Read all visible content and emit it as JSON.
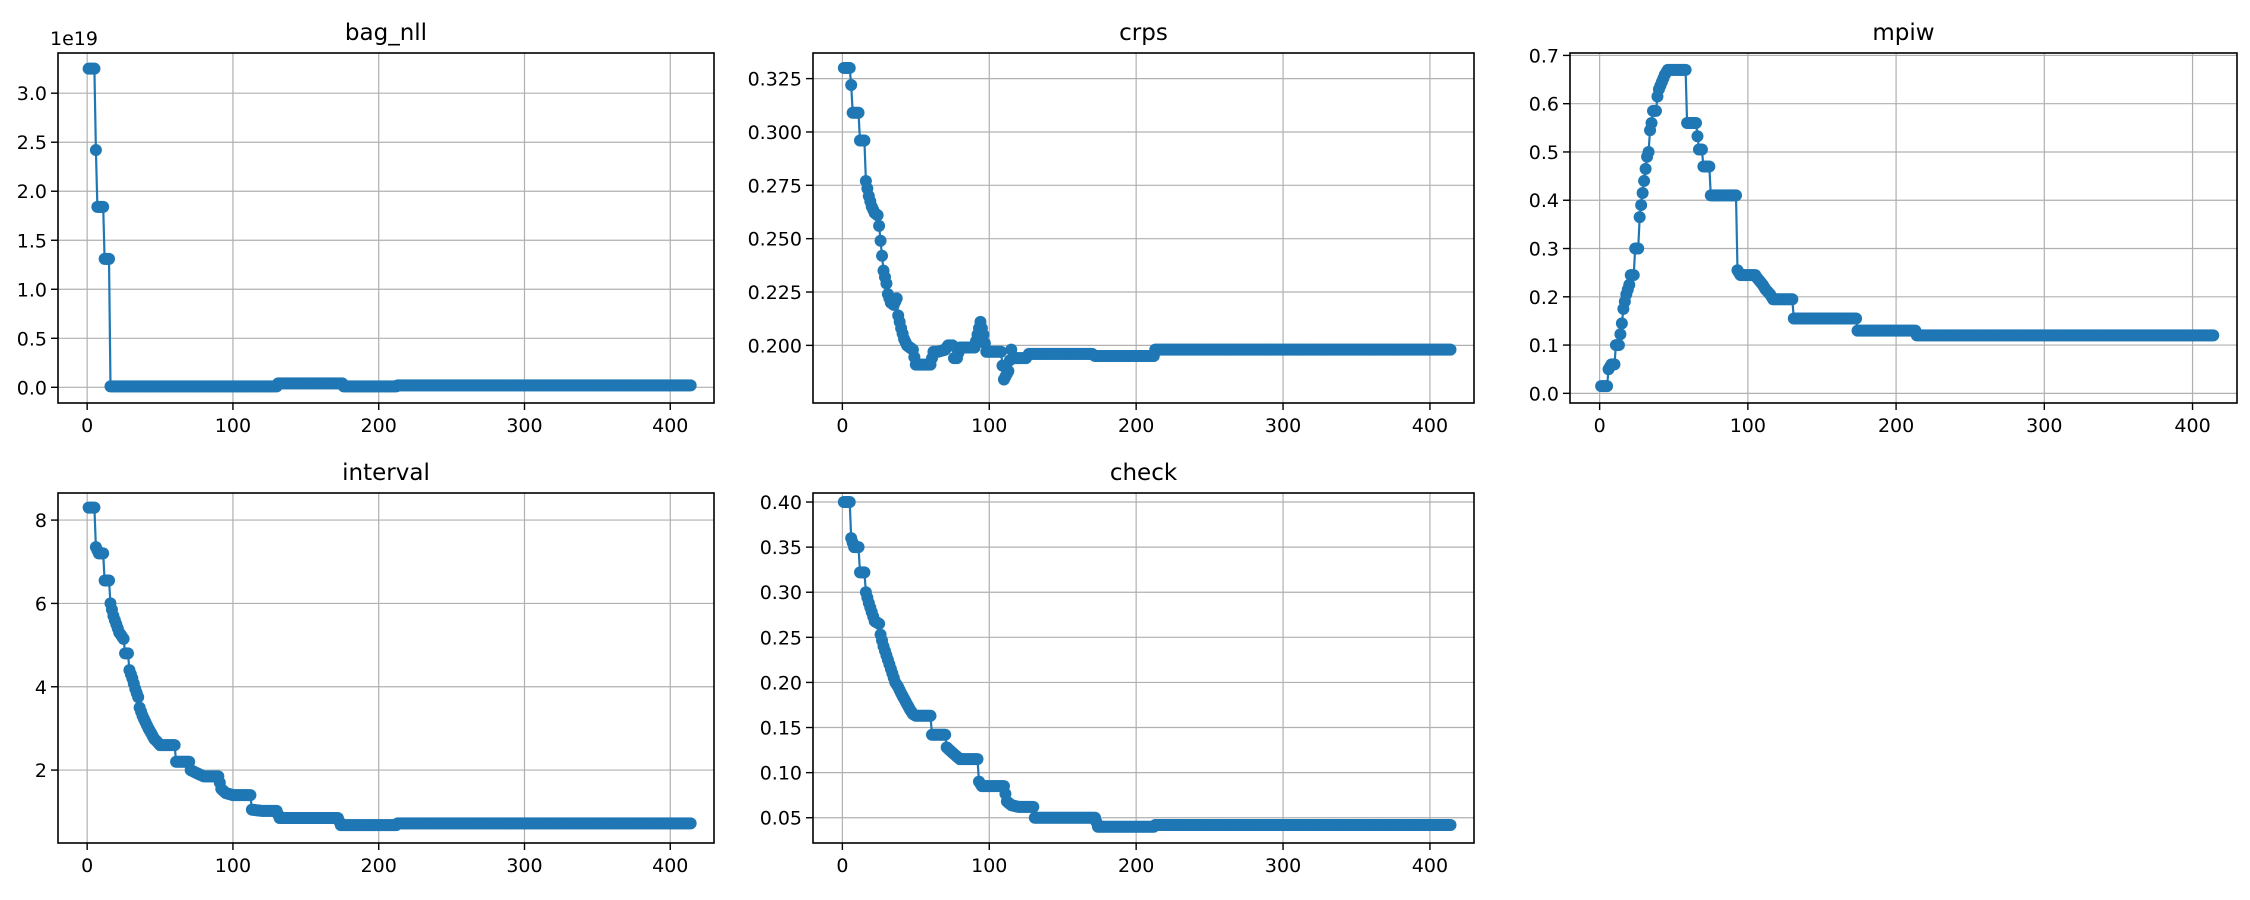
{
  "figure": {
    "series_color": "#1f77b4",
    "grid": true,
    "marker": "circle"
  },
  "chart_data": [
    {
      "type": "line",
      "title": "bag_nll",
      "offset_label": "1e19",
      "xlim": [
        -20,
        430
      ],
      "ylim": [
        -0.16,
        3.41
      ],
      "xticks": [
        0,
        100,
        200,
        300,
        400
      ],
      "yticks": [
        0.0,
        0.5,
        1.0,
        1.5,
        2.0,
        2.5,
        3.0
      ],
      "ytick_labels": [
        "0.0",
        "0.5",
        "1.0",
        "1.5",
        "2.0",
        "2.5",
        "3.0"
      ],
      "series": [
        {
          "marker_size": 6,
          "points": [
            [
              1,
              3.25
            ],
            [
              5,
              3.25
            ],
            [
              6,
              2.42
            ],
            [
              7,
              1.84
            ],
            [
              11,
              1.84
            ],
            [
              12,
              1.31
            ],
            [
              15,
              1.31
            ],
            [
              16,
              0.01
            ],
            [
              60,
              0.01
            ],
            [
              130,
              0.01
            ],
            [
              131,
              0.04
            ],
            [
              175,
              0.04
            ],
            [
              176,
              0.01
            ],
            [
              212,
              0.01
            ],
            [
              213,
              0.02
            ],
            [
              300,
              0.02
            ],
            [
              414,
              0.02
            ]
          ]
        }
      ]
    },
    {
      "type": "line",
      "title": "crps",
      "xlim": [
        -20,
        430
      ],
      "ylim": [
        0.173,
        0.337
      ],
      "xticks": [
        0,
        100,
        200,
        300,
        400
      ],
      "yticks": [
        0.2,
        0.225,
        0.25,
        0.275,
        0.3,
        0.325
      ],
      "ytick_labels": [
        "0.200",
        "0.225",
        "0.250",
        "0.275",
        "0.300",
        "0.325"
      ],
      "series": [
        {
          "marker_size": 6,
          "points": [
            [
              1,
              0.33
            ],
            [
              5,
              0.33
            ],
            [
              6,
              0.322
            ],
            [
              7,
              0.309
            ],
            [
              11,
              0.309
            ],
            [
              12,
              0.296
            ],
            [
              15,
              0.296
            ],
            [
              16,
              0.277
            ],
            [
              18,
              0.27
            ],
            [
              20,
              0.265
            ],
            [
              22,
              0.262
            ],
            [
              24,
              0.261
            ],
            [
              25,
              0.256
            ],
            [
              27,
              0.242
            ],
            [
              28,
              0.235
            ],
            [
              30,
              0.229
            ],
            [
              31,
              0.224
            ],
            [
              33,
              0.22
            ],
            [
              35,
              0.219
            ],
            [
              37,
              0.222
            ],
            [
              38,
              0.214
            ],
            [
              40,
              0.208
            ],
            [
              42,
              0.203
            ],
            [
              44,
              0.2
            ],
            [
              46,
              0.199
            ],
            [
              48,
              0.198
            ],
            [
              50,
              0.191
            ],
            [
              55,
              0.191
            ],
            [
              60,
              0.191
            ],
            [
              62,
              0.197
            ],
            [
              65,
              0.197
            ],
            [
              70,
              0.198
            ],
            [
              72,
              0.2
            ],
            [
              75,
              0.2
            ],
            [
              76,
              0.194
            ],
            [
              78,
              0.194
            ],
            [
              80,
              0.199
            ],
            [
              85,
              0.199
            ],
            [
              90,
              0.199
            ],
            [
              94,
              0.211
            ],
            [
              96,
              0.205
            ],
            [
              98,
              0.197
            ],
            [
              108,
              0.197
            ],
            [
              110,
              0.184
            ],
            [
              113,
              0.188
            ],
            [
              115,
              0.198
            ],
            [
              116,
              0.194
            ],
            [
              125,
              0.194
            ],
            [
              127,
              0.196
            ],
            [
              170,
              0.196
            ],
            [
              172,
              0.195
            ],
            [
              212,
              0.195
            ],
            [
              213,
              0.198
            ],
            [
              300,
              0.198
            ],
            [
              414,
              0.198
            ]
          ]
        }
      ]
    },
    {
      "type": "line",
      "title": "mpiw",
      "xlim": [
        -20,
        430
      ],
      "ylim": [
        -0.02,
        0.705
      ],
      "xticks": [
        0,
        100,
        200,
        300,
        400
      ],
      "yticks": [
        0.0,
        0.1,
        0.2,
        0.3,
        0.4,
        0.5,
        0.6,
        0.7
      ],
      "ytick_labels": [
        "0.0",
        "0.1",
        "0.2",
        "0.3",
        "0.4",
        "0.5",
        "0.6",
        "0.7"
      ],
      "series": [
        {
          "marker_size": 6,
          "points": [
            [
              1,
              0.015
            ],
            [
              5,
              0.015
            ],
            [
              6,
              0.05
            ],
            [
              8,
              0.06
            ],
            [
              10,
              0.06
            ],
            [
              11,
              0.1
            ],
            [
              13,
              0.1
            ],
            [
              15,
              0.145
            ],
            [
              16,
              0.175
            ],
            [
              17,
              0.19
            ],
            [
              18,
              0.205
            ],
            [
              20,
              0.225
            ],
            [
              21,
              0.245
            ],
            [
              23,
              0.245
            ],
            [
              24,
              0.3
            ],
            [
              26,
              0.3
            ],
            [
              27,
              0.365
            ],
            [
              28,
              0.39
            ],
            [
              29,
              0.415
            ],
            [
              30,
              0.44
            ],
            [
              31,
              0.465
            ],
            [
              32,
              0.49
            ],
            [
              33,
              0.5
            ],
            [
              34,
              0.545
            ],
            [
              35,
              0.56
            ],
            [
              36,
              0.585
            ],
            [
              38,
              0.585
            ],
            [
              39,
              0.615
            ],
            [
              40,
              0.63
            ],
            [
              42,
              0.645
            ],
            [
              44,
              0.66
            ],
            [
              46,
              0.67
            ],
            [
              50,
              0.67
            ],
            [
              55,
              0.67
            ],
            [
              58,
              0.67
            ],
            [
              59,
              0.56
            ],
            [
              62,
              0.56
            ],
            [
              65,
              0.56
            ],
            [
              67,
              0.505
            ],
            [
              69,
              0.505
            ],
            [
              70,
              0.47
            ],
            [
              74,
              0.47
            ],
            [
              75,
              0.41
            ],
            [
              80,
              0.41
            ],
            [
              85,
              0.41
            ],
            [
              92,
              0.41
            ],
            [
              93,
              0.255
            ],
            [
              95,
              0.245
            ],
            [
              100,
              0.245
            ],
            [
              105,
              0.245
            ],
            [
              106,
              0.24
            ],
            [
              110,
              0.225
            ],
            [
              112,
              0.215
            ],
            [
              115,
              0.205
            ],
            [
              117,
              0.195
            ],
            [
              120,
              0.195
            ],
            [
              130,
              0.195
            ],
            [
              131,
              0.155
            ],
            [
              150,
              0.155
            ],
            [
              173,
              0.155
            ],
            [
              174,
              0.13
            ],
            [
              190,
              0.13
            ],
            [
              213,
              0.13
            ],
            [
              214,
              0.12
            ],
            [
              300,
              0.12
            ],
            [
              414,
              0.12
            ]
          ]
        }
      ]
    },
    {
      "type": "line",
      "title": "interval",
      "xlim": [
        -20,
        430
      ],
      "ylim": [
        0.25,
        8.65
      ],
      "xticks": [
        0,
        100,
        200,
        300,
        400
      ],
      "yticks": [
        2,
        4,
        6,
        8
      ],
      "ytick_labels": [
        "2",
        "4",
        "6",
        "8"
      ],
      "series": [
        {
          "marker_size": 6,
          "points": [
            [
              1,
              8.3
            ],
            [
              5,
              8.3
            ],
            [
              6,
              7.35
            ],
            [
              8,
              7.2
            ],
            [
              11,
              7.2
            ],
            [
              12,
              6.55
            ],
            [
              15,
              6.55
            ],
            [
              16,
              6.0
            ],
            [
              18,
              5.7
            ],
            [
              20,
              5.5
            ],
            [
              22,
              5.3
            ],
            [
              25,
              5.15
            ],
            [
              26,
              4.8
            ],
            [
              28,
              4.8
            ],
            [
              29,
              4.4
            ],
            [
              31,
              4.2
            ],
            [
              33,
              3.95
            ],
            [
              35,
              3.75
            ],
            [
              36,
              3.5
            ],
            [
              38,
              3.3
            ],
            [
              40,
              3.15
            ],
            [
              42,
              3.0
            ],
            [
              44,
              2.88
            ],
            [
              46,
              2.75
            ],
            [
              48,
              2.68
            ],
            [
              50,
              2.6
            ],
            [
              55,
              2.6
            ],
            [
              60,
              2.6
            ],
            [
              61,
              2.2
            ],
            [
              65,
              2.2
            ],
            [
              70,
              2.2
            ],
            [
              71,
              2.0
            ],
            [
              75,
              1.93
            ],
            [
              80,
              1.85
            ],
            [
              85,
              1.85
            ],
            [
              90,
              1.85
            ],
            [
              92,
              1.55
            ],
            [
              95,
              1.45
            ],
            [
              100,
              1.4
            ],
            [
              112,
              1.4
            ],
            [
              113,
              1.05
            ],
            [
              120,
              1.02
            ],
            [
              130,
              1.02
            ],
            [
              132,
              0.85
            ],
            [
              150,
              0.85
            ],
            [
              172,
              0.85
            ],
            [
              174,
              0.68
            ],
            [
              190,
              0.68
            ],
            [
              212,
              0.68
            ],
            [
              213,
              0.72
            ],
            [
              300,
              0.72
            ],
            [
              414,
              0.72
            ]
          ]
        }
      ]
    },
    {
      "type": "line",
      "title": "check",
      "xlim": [
        -20,
        430
      ],
      "ylim": [
        0.022,
        0.41
      ],
      "xticks": [
        0,
        100,
        200,
        300,
        400
      ],
      "yticks": [
        0.05,
        0.1,
        0.15,
        0.2,
        0.25,
        0.3,
        0.35,
        0.4
      ],
      "ytick_labels": [
        "0.05",
        "0.10",
        "0.15",
        "0.20",
        "0.25",
        "0.30",
        "0.35",
        "0.40"
      ],
      "series": [
        {
          "marker_size": 6,
          "points": [
            [
              1,
              0.4
            ],
            [
              5,
              0.4
            ],
            [
              6,
              0.36
            ],
            [
              8,
              0.35
            ],
            [
              11,
              0.35
            ],
            [
              12,
              0.322
            ],
            [
              15,
              0.322
            ],
            [
              16,
              0.3
            ],
            [
              18,
              0.288
            ],
            [
              20,
              0.278
            ],
            [
              22,
              0.268
            ],
            [
              25,
              0.265
            ],
            [
              26,
              0.253
            ],
            [
              28,
              0.24
            ],
            [
              30,
              0.23
            ],
            [
              32,
              0.22
            ],
            [
              34,
              0.21
            ],
            [
              36,
              0.2
            ],
            [
              38,
              0.195
            ],
            [
              40,
              0.188
            ],
            [
              42,
              0.182
            ],
            [
              44,
              0.176
            ],
            [
              46,
              0.17
            ],
            [
              48,
              0.165
            ],
            [
              50,
              0.163
            ],
            [
              55,
              0.163
            ],
            [
              60,
              0.163
            ],
            [
              61,
              0.142
            ],
            [
              65,
              0.142
            ],
            [
              70,
              0.142
            ],
            [
              71,
              0.128
            ],
            [
              75,
              0.122
            ],
            [
              80,
              0.115
            ],
            [
              85,
              0.115
            ],
            [
              92,
              0.115
            ],
            [
              93,
              0.09
            ],
            [
              95,
              0.085
            ],
            [
              100,
              0.085
            ],
            [
              110,
              0.085
            ],
            [
              112,
              0.068
            ],
            [
              115,
              0.064
            ],
            [
              120,
              0.062
            ],
            [
              130,
              0.062
            ],
            [
              131,
              0.05
            ],
            [
              150,
              0.05
            ],
            [
              172,
              0.05
            ],
            [
              174,
              0.04
            ],
            [
              190,
              0.04
            ],
            [
              212,
              0.04
            ],
            [
              213,
              0.042
            ],
            [
              300,
              0.042
            ],
            [
              414,
              0.042
            ]
          ]
        }
      ]
    }
  ]
}
